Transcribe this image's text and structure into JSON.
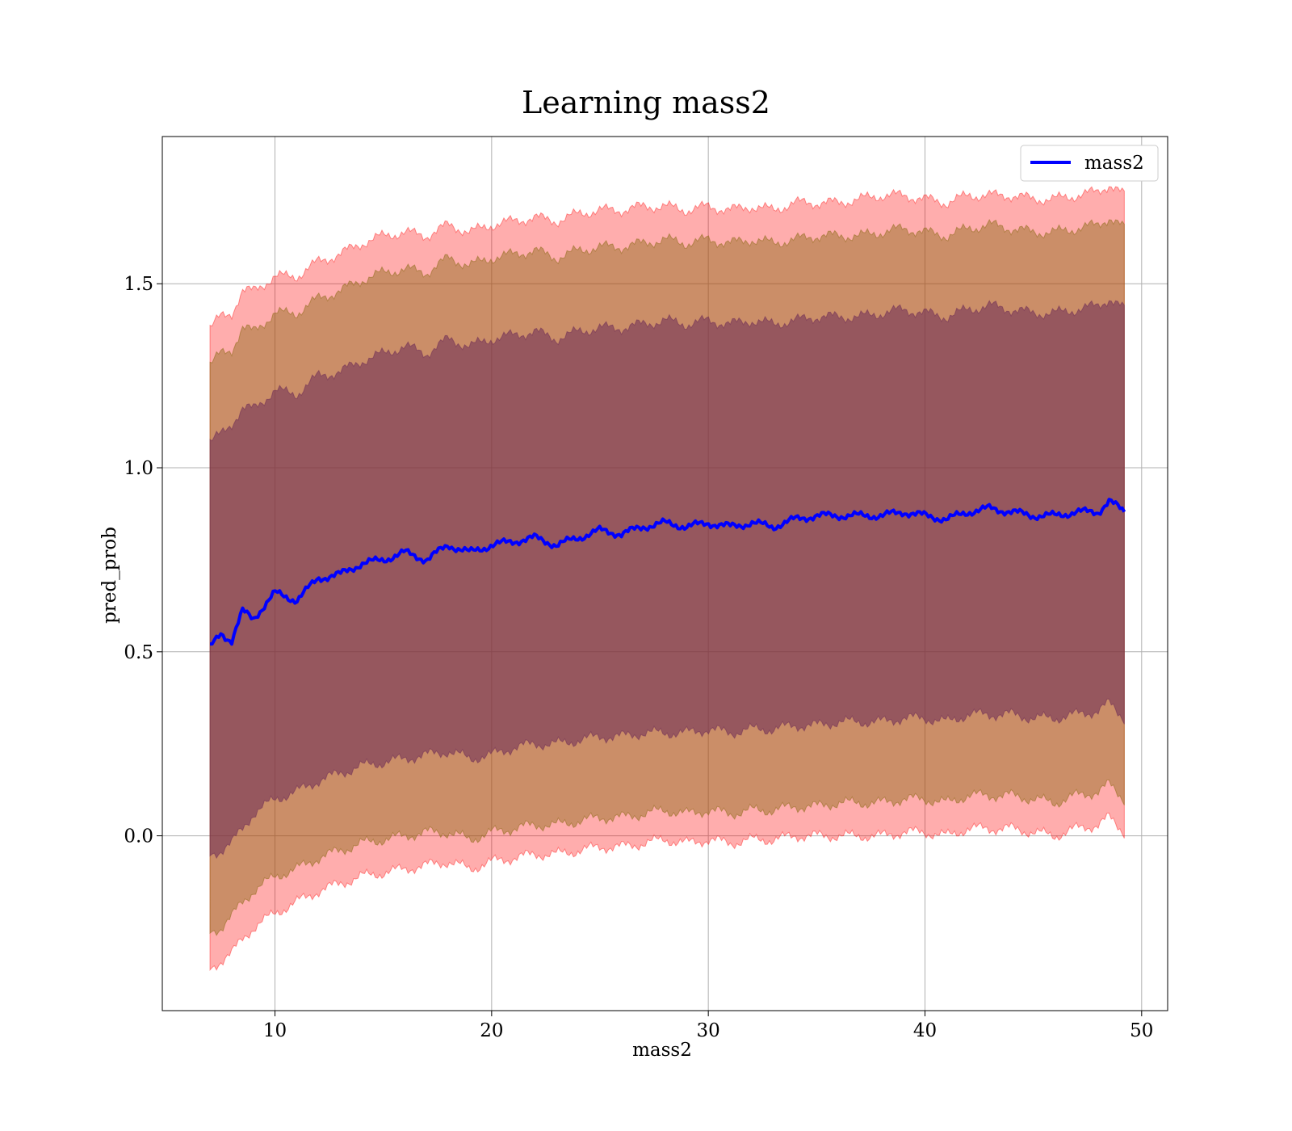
{
  "chart_data": {
    "type": "area",
    "title": "Learning mass2",
    "xlabel": "mass2",
    "ylabel": "pred_prob",
    "xlim": [
      4.8,
      51.2
    ],
    "ylim": [
      -0.475,
      1.9
    ],
    "xticks": [
      10,
      20,
      30,
      40,
      50
    ],
    "yticks": [
      0.0,
      0.5,
      1.0,
      1.5
    ],
    "xtick_labels": [
      "10",
      "20",
      "30",
      "40",
      "50"
    ],
    "ytick_labels": [
      "0.0",
      "0.5",
      "1.0",
      "1.5"
    ],
    "grid": true,
    "legend": {
      "placement": "top-right",
      "entries": [
        "mass2"
      ]
    },
    "colors": {
      "line": "#0000ff",
      "band_outer": "#ff0000",
      "band_middle": "#8b6914",
      "band_inner": "#6b2a55"
    },
    "series": [
      {
        "name": "mass2",
        "x": [
          7.0,
          7.5,
          8.0,
          8.5,
          9.0,
          10.0,
          11.0,
          12.0,
          13.0,
          14.0,
          15.0,
          16.0,
          17.0,
          18.0,
          19.0,
          20.0,
          21.0,
          22.0,
          23.0,
          24.0,
          25.0,
          26.0,
          27.0,
          28.0,
          29.0,
          30.0,
          31.0,
          32.0,
          33.0,
          34.0,
          35.0,
          36.0,
          37.0,
          38.0,
          39.0,
          40.0,
          41.0,
          42.0,
          43.0,
          44.0,
          45.0,
          46.0,
          47.0,
          48.0,
          48.5,
          49.2
        ],
        "y": [
          0.51,
          0.55,
          0.53,
          0.61,
          0.59,
          0.66,
          0.64,
          0.7,
          0.71,
          0.74,
          0.75,
          0.77,
          0.75,
          0.79,
          0.77,
          0.79,
          0.8,
          0.81,
          0.79,
          0.81,
          0.83,
          0.82,
          0.84,
          0.85,
          0.84,
          0.85,
          0.84,
          0.85,
          0.84,
          0.86,
          0.87,
          0.87,
          0.87,
          0.87,
          0.88,
          0.87,
          0.86,
          0.88,
          0.89,
          0.88,
          0.87,
          0.87,
          0.88,
          0.88,
          0.91,
          0.88
        ],
        "band_inner_low": [
          -0.05,
          -0.04,
          -0.02,
          0.02,
          0.06,
          0.1,
          0.12,
          0.15,
          0.17,
          0.19,
          0.2,
          0.21,
          0.22,
          0.23,
          0.21,
          0.22,
          0.24,
          0.25,
          0.25,
          0.26,
          0.27,
          0.27,
          0.28,
          0.28,
          0.28,
          0.29,
          0.28,
          0.29,
          0.29,
          0.3,
          0.3,
          0.31,
          0.31,
          0.31,
          0.32,
          0.32,
          0.31,
          0.33,
          0.33,
          0.33,
          0.32,
          0.32,
          0.33,
          0.34,
          0.36,
          0.32
        ],
        "band_inner_high": [
          1.07,
          1.09,
          1.12,
          1.16,
          1.16,
          1.21,
          1.2,
          1.25,
          1.26,
          1.29,
          1.31,
          1.33,
          1.31,
          1.35,
          1.33,
          1.35,
          1.36,
          1.37,
          1.35,
          1.37,
          1.38,
          1.38,
          1.39,
          1.4,
          1.39,
          1.4,
          1.39,
          1.4,
          1.39,
          1.4,
          1.41,
          1.41,
          1.41,
          1.42,
          1.43,
          1.42,
          1.41,
          1.43,
          1.44,
          1.43,
          1.42,
          1.42,
          1.43,
          1.44,
          1.46,
          1.43
        ],
        "band_mid_low": [
          -0.26,
          -0.25,
          -0.22,
          -0.18,
          -0.15,
          -0.11,
          -0.09,
          -0.06,
          -0.04,
          -0.02,
          -0.01,
          0.0,
          0.01,
          0.01,
          -0.01,
          0.01,
          0.02,
          0.03,
          0.03,
          0.04,
          0.05,
          0.05,
          0.06,
          0.07,
          0.06,
          0.07,
          0.06,
          0.07,
          0.07,
          0.08,
          0.08,
          0.09,
          0.09,
          0.09,
          0.1,
          0.1,
          0.09,
          0.11,
          0.11,
          0.11,
          0.1,
          0.09,
          0.11,
          0.12,
          0.14,
          0.1
        ],
        "band_mid_high": [
          1.28,
          1.31,
          1.32,
          1.38,
          1.37,
          1.42,
          1.42,
          1.46,
          1.48,
          1.51,
          1.53,
          1.54,
          1.53,
          1.57,
          1.55,
          1.57,
          1.58,
          1.59,
          1.57,
          1.59,
          1.6,
          1.6,
          1.61,
          1.62,
          1.61,
          1.62,
          1.61,
          1.62,
          1.61,
          1.62,
          1.63,
          1.63,
          1.63,
          1.64,
          1.65,
          1.64,
          1.63,
          1.65,
          1.66,
          1.65,
          1.64,
          1.64,
          1.65,
          1.66,
          1.68,
          1.65
        ],
        "band_outer_low": [
          -0.36,
          -0.34,
          -0.32,
          -0.28,
          -0.25,
          -0.21,
          -0.18,
          -0.15,
          -0.13,
          -0.11,
          -0.1,
          -0.09,
          -0.08,
          -0.07,
          -0.09,
          -0.07,
          -0.06,
          -0.05,
          -0.05,
          -0.04,
          -0.03,
          -0.03,
          -0.02,
          -0.01,
          -0.02,
          -0.01,
          -0.02,
          -0.01,
          -0.01,
          0.0,
          0.0,
          0.0,
          0.0,
          0.0,
          0.01,
          0.01,
          0.0,
          0.02,
          0.02,
          0.02,
          0.01,
          0.0,
          0.02,
          0.03,
          0.05,
          0.01
        ],
        "band_outer_high": [
          1.38,
          1.41,
          1.42,
          1.48,
          1.48,
          1.52,
          1.52,
          1.56,
          1.58,
          1.61,
          1.63,
          1.64,
          1.63,
          1.66,
          1.64,
          1.66,
          1.67,
          1.68,
          1.67,
          1.69,
          1.7,
          1.7,
          1.71,
          1.71,
          1.7,
          1.71,
          1.7,
          1.71,
          1.7,
          1.72,
          1.72,
          1.72,
          1.73,
          1.74,
          1.74,
          1.73,
          1.72,
          1.74,
          1.74,
          1.74,
          1.73,
          1.73,
          1.74,
          1.75,
          1.77,
          1.74
        ]
      }
    ]
  }
}
